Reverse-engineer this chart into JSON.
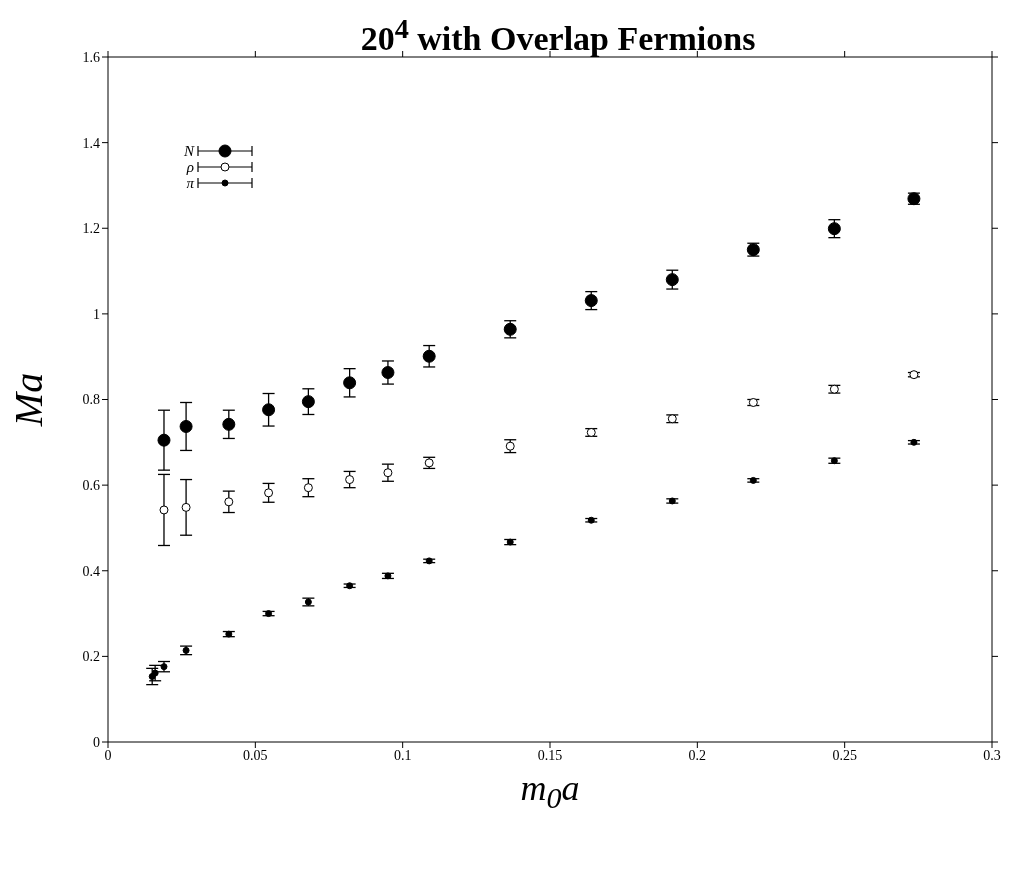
{
  "chart_data": {
    "type": "scatter",
    "title": "20$^{4}$ with Overlap Fermions",
    "xlabel": "m$_{0}$a",
    "ylabel": "Ma",
    "x": [
      0.015,
      0.016,
      0.019,
      0.0265,
      0.041,
      0.0545,
      0.068,
      0.082,
      0.095,
      0.109,
      0.1365,
      0.164,
      0.1915,
      0.219,
      0.2465,
      0.2735
    ],
    "series": [
      {
        "name": "N",
        "color": "#000000",
        "values": [
          null,
          null,
          0.705,
          0.737,
          0.742,
          0.776,
          0.795,
          0.839,
          0.863,
          0.901,
          0.964,
          1.031,
          1.08,
          1.15,
          1.199,
          1.269
        ],
        "errors": [
          null,
          null,
          0.07,
          0.056,
          0.033,
          0.038,
          0.03,
          0.033,
          0.027,
          0.025,
          0.02,
          0.021,
          0.022,
          0.015,
          0.021,
          0.013
        ]
      },
      {
        "name": "ρ",
        "color": "#000000",
        "values": [
          null,
          null,
          0.542,
          0.548,
          0.561,
          0.582,
          0.594,
          0.613,
          0.629,
          0.652,
          0.691,
          0.723,
          0.755,
          0.793,
          0.824,
          0.858
        ],
        "errors": [
          null,
          null,
          0.083,
          0.065,
          0.025,
          0.022,
          0.021,
          0.019,
          0.02,
          0.013,
          0.015,
          0.009,
          0.009,
          0.007,
          0.009,
          0.005
        ]
      },
      {
        "name": "π",
        "color": "#000000",
        "values": [
          0.153,
          0.161,
          0.176,
          0.214,
          0.252,
          0.3,
          0.327,
          0.365,
          0.388,
          0.423,
          0.467,
          0.518,
          0.563,
          0.611,
          0.657,
          0.7
        ],
        "errors": [
          0.019,
          0.018,
          0.012,
          0.01,
          0.006,
          0.005,
          0.009,
          0.004,
          0.006,
          0.004,
          0.006,
          0.004,
          0.005,
          0.004,
          0.006,
          0.004
        ]
      }
    ],
    "xlim": [
      0,
      0.3
    ],
    "xticks": [
      0,
      0.05,
      0.1,
      0.15,
      0.2,
      0.25,
      0.3
    ],
    "ylim": [
      0,
      1.6
    ],
    "yticks": [
      0,
      0.2,
      0.4,
      0.6,
      0.8,
      1,
      1.2,
      1.4,
      1.6
    ],
    "grid": false,
    "legend": "top left",
    "marker": "circle"
  }
}
